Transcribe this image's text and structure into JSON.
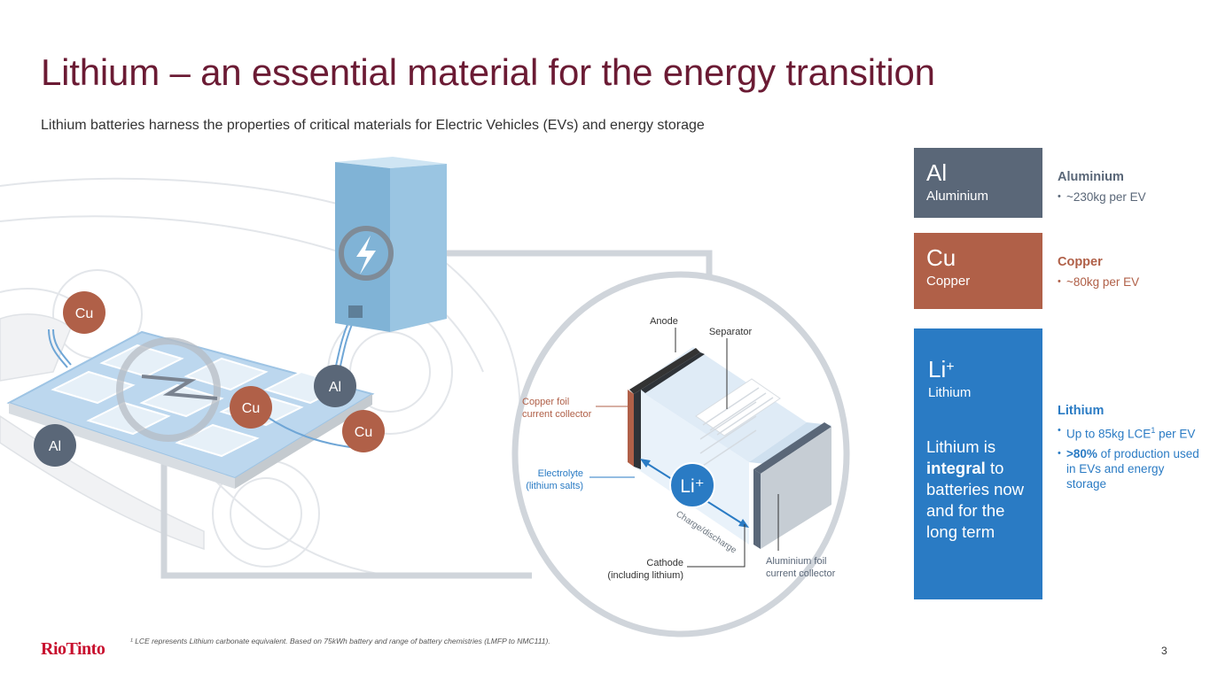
{
  "slide": {
    "title": "Lithium – an essential material for the energy transition",
    "subtitle": "Lithium batteries harness the properties of critical materials for Electric Vehicles (EVs) and energy storage",
    "page_number": "3",
    "logo_text": "RioTinto",
    "footnote": "¹ LCE represents Lithium carbonate equivalent. Based on 75kWh battery and range of battery chemistries (LMFP to NMC111)."
  },
  "colors": {
    "title": "#6b1b34",
    "aluminium": "#5a6778",
    "copper": "#b06048",
    "lithium": "#2a7bc4"
  },
  "car_badges": [
    {
      "label": "Cu"
    },
    {
      "label": "Cu"
    },
    {
      "label": "Al"
    },
    {
      "label": "Cu"
    },
    {
      "label": "Al"
    }
  ],
  "cell_diagram": {
    "anode": "Anode",
    "separator": "Separator",
    "copper_foil_line1": "Copper foil",
    "copper_foil_line2": "current collector",
    "electrolyte_line1": "Electrolyte",
    "electrolyte_line2": "(lithium salts)",
    "ion_label": "Li⁺",
    "charge_label": "Charge/discharge",
    "cathode_line1": "Cathode",
    "cathode_line2": "(including lithium)",
    "aluminium_foil_line1": "Aluminium foil",
    "aluminium_foil_line2": "current collector"
  },
  "tiles": {
    "aluminium": {
      "symbol": "Al",
      "name": "Aluminium"
    },
    "copper": {
      "symbol": "Cu",
      "name": "Copper"
    },
    "lithium": {
      "symbol": "Li",
      "charge": "+",
      "name": "Lithium",
      "statement_pre": "Lithium is",
      "statement_bold": "integral",
      "statement_post": "to batteries now and for the long term"
    }
  },
  "details": {
    "aluminium": {
      "heading": "Aluminium",
      "bullet1": "~230kg per EV"
    },
    "copper": {
      "heading": "Copper",
      "bullet1": "~80kg per EV"
    },
    "lithium": {
      "heading": "Lithium",
      "bullet1_text": "Up to 85kg LCE",
      "bullet1_sup": "1",
      "bullet1_tail": "per EV",
      "bullet2_bold": ">80%",
      "bullet2_text": "of production used in EVs and energy storage"
    }
  }
}
